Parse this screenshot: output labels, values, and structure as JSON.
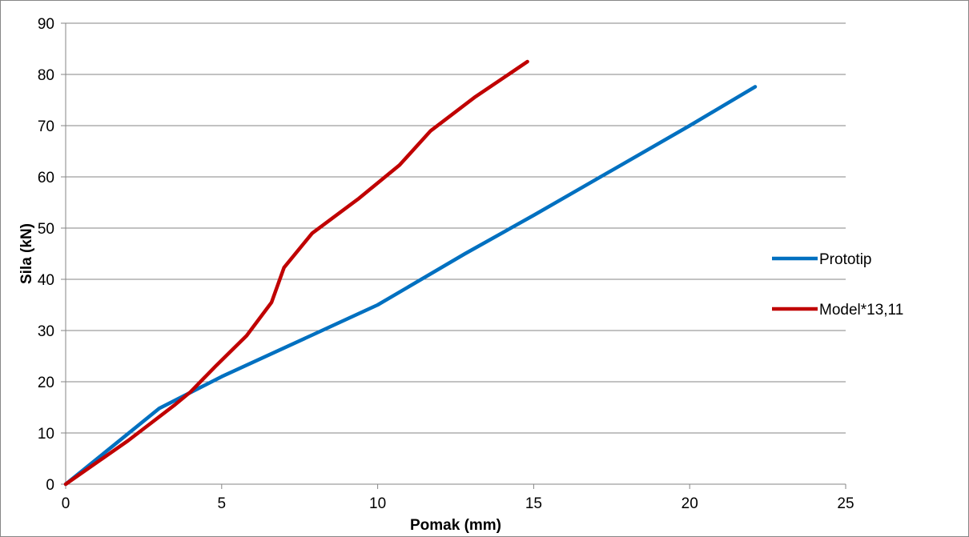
{
  "chart_data": {
    "type": "line",
    "title": "",
    "xlabel": "Pomak (mm)",
    "ylabel": "Sila (kN)",
    "xlim": [
      0,
      25
    ],
    "ylim": [
      0,
      90
    ],
    "x_ticks": [
      "0",
      "5",
      "10",
      "15",
      "20",
      "25"
    ],
    "y_ticks": [
      "0",
      "10",
      "20",
      "30",
      "40",
      "50",
      "60",
      "70",
      "80",
      "90"
    ],
    "grid": "horizontal",
    "legend_position": "right",
    "series": [
      {
        "name": "Prototip",
        "color": "#0070c0",
        "points": [
          [
            0,
            0
          ],
          [
            3,
            14.8
          ],
          [
            5,
            21
          ],
          [
            10,
            35
          ],
          [
            12.8,
            45
          ],
          [
            15,
            52.5
          ],
          [
            20,
            70
          ],
          [
            22.1,
            77.6
          ]
        ]
      },
      {
        "name": "Model*13,11",
        "color": "#c00000",
        "points": [
          [
            0,
            0
          ],
          [
            2,
            8.5
          ],
          [
            3.5,
            15.5
          ],
          [
            4,
            18
          ],
          [
            4.8,
            23
          ],
          [
            5.8,
            29
          ],
          [
            6.6,
            35.5
          ],
          [
            7,
            42.3
          ],
          [
            7.9,
            49
          ],
          [
            9.4,
            55.8
          ],
          [
            10.7,
            62.3
          ],
          [
            11.7,
            69
          ],
          [
            13.1,
            75.5
          ],
          [
            14.8,
            82.5
          ]
        ]
      }
    ]
  }
}
